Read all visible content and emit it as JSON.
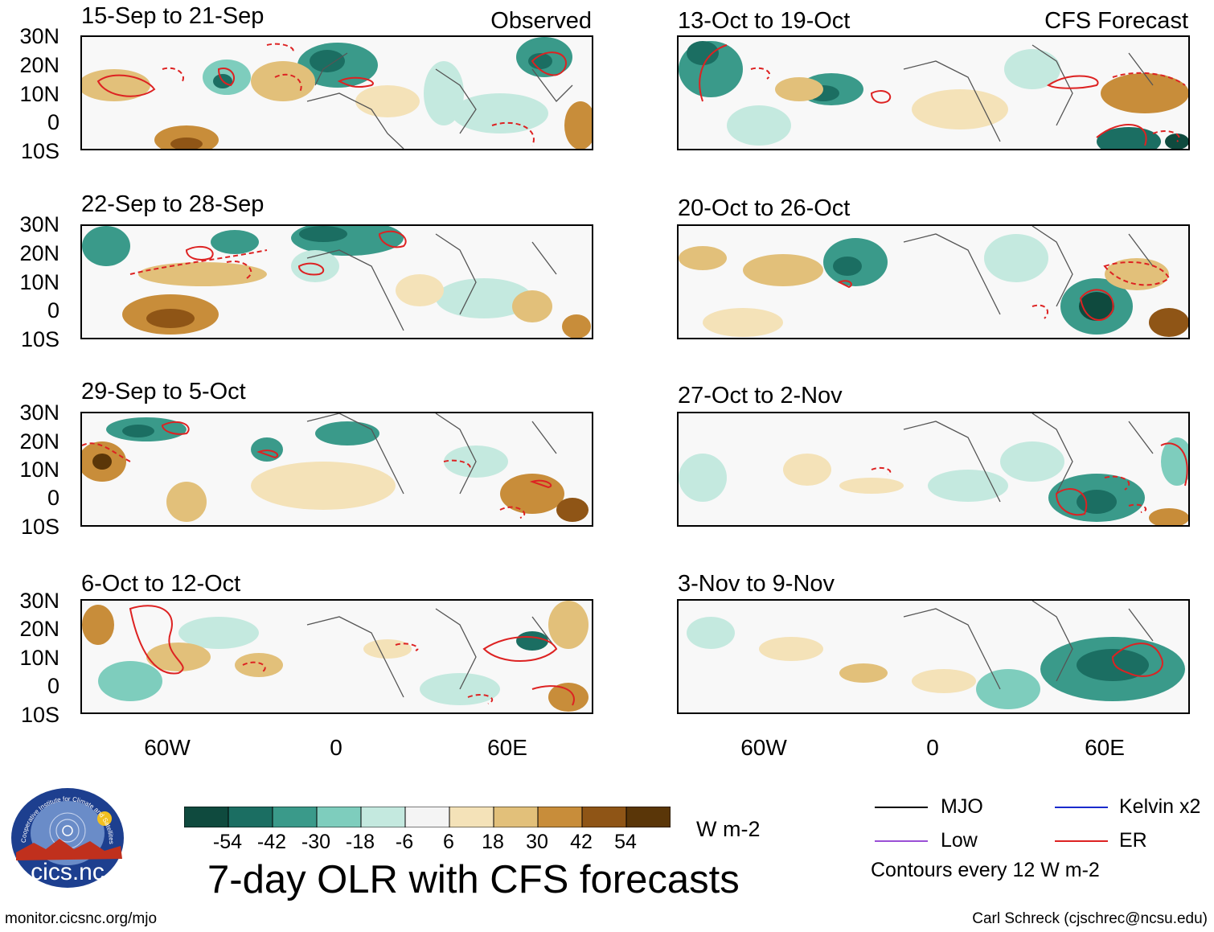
{
  "panels": [
    {
      "title": "15-Sep to 21-Sep",
      "tag": "Observed"
    },
    {
      "title": "22-Sep to 28-Sep",
      "tag": ""
    },
    {
      "title": "29-Sep to 5-Oct",
      "tag": ""
    },
    {
      "title": "6-Oct to 12-Oct",
      "tag": ""
    },
    {
      "title": "13-Oct to 19-Oct",
      "tag": "CFS Forecast"
    },
    {
      "title": "20-Oct to 26-Oct",
      "tag": ""
    },
    {
      "title": "27-Oct to 2-Nov",
      "tag": ""
    },
    {
      "title": "3-Nov to 9-Nov",
      "tag": ""
    }
  ],
  "y_axis": [
    "30N",
    "20N",
    "10N",
    "0",
    "10S"
  ],
  "x_axis": [
    "60W",
    "0",
    "60E"
  ],
  "colorbar": {
    "ticks": [
      "-54",
      "-42",
      "-30",
      "-18",
      "-6",
      "6",
      "18",
      "30",
      "42",
      "54"
    ],
    "units": "W m-2",
    "colors": [
      "#0f4a3e",
      "#1b6e62",
      "#3a9a8a",
      "#7ecdbd",
      "#c4e9df",
      "#f4f4f4",
      "#f4e2b8",
      "#e2c07a",
      "#c88d3a",
      "#8f5516",
      "#5a3608"
    ]
  },
  "title": "7-day OLR with CFS forecasts",
  "legend": {
    "mjo": "MJO",
    "kelvin": "Kelvin x2",
    "low": "Low",
    "er": "ER",
    "note": "Contours every 12 W m-2",
    "colors": {
      "mjo": "#000000",
      "kelvin": "#1a2bcc",
      "low": "#9a4fd6",
      "er": "#dd2222"
    }
  },
  "logo": {
    "text": "cics.nc",
    "ring_text": "Cooperative Institute for Climate and Satellites"
  },
  "footer": {
    "left": "monitor.cicsnc.org/mjo",
    "right": "Carl Schreck (cjschrec@ncsu.edu)"
  }
}
